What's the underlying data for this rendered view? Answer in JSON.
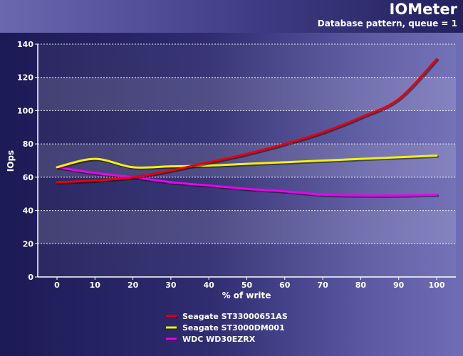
{
  "chart_data": {
    "type": "line",
    "title": "IOMeter",
    "subtitle": "Database pattern, queue = 1",
    "xlabel": "% of write",
    "ylabel": "IOps",
    "x": [
      0,
      10,
      20,
      30,
      40,
      50,
      60,
      70,
      80,
      90,
      100
    ],
    "xlim": [
      0,
      100
    ],
    "ylim": [
      0,
      140
    ],
    "yticks": [
      0,
      20,
      40,
      60,
      80,
      100,
      120,
      140
    ],
    "grid": true,
    "legend_position": "bottom",
    "series": [
      {
        "name": "Seagate ST33000651AS",
        "color": "#e8000b",
        "values": [
          57,
          58,
          60,
          64,
          69,
          74,
          80,
          87,
          96,
          107,
          131
        ]
      },
      {
        "name": "Seagate ST3000DM001",
        "color": "#f2f20a",
        "values": [
          66,
          71,
          66,
          66.5,
          67,
          68,
          69,
          70,
          71,
          72,
          73
        ]
      },
      {
        "name": "WDC WD30EZRX",
        "color": "#ee00ee",
        "values": [
          66,
          62.5,
          60,
          57,
          55,
          53,
          51.5,
          49.5,
          49,
          49,
          49.5
        ]
      }
    ]
  }
}
